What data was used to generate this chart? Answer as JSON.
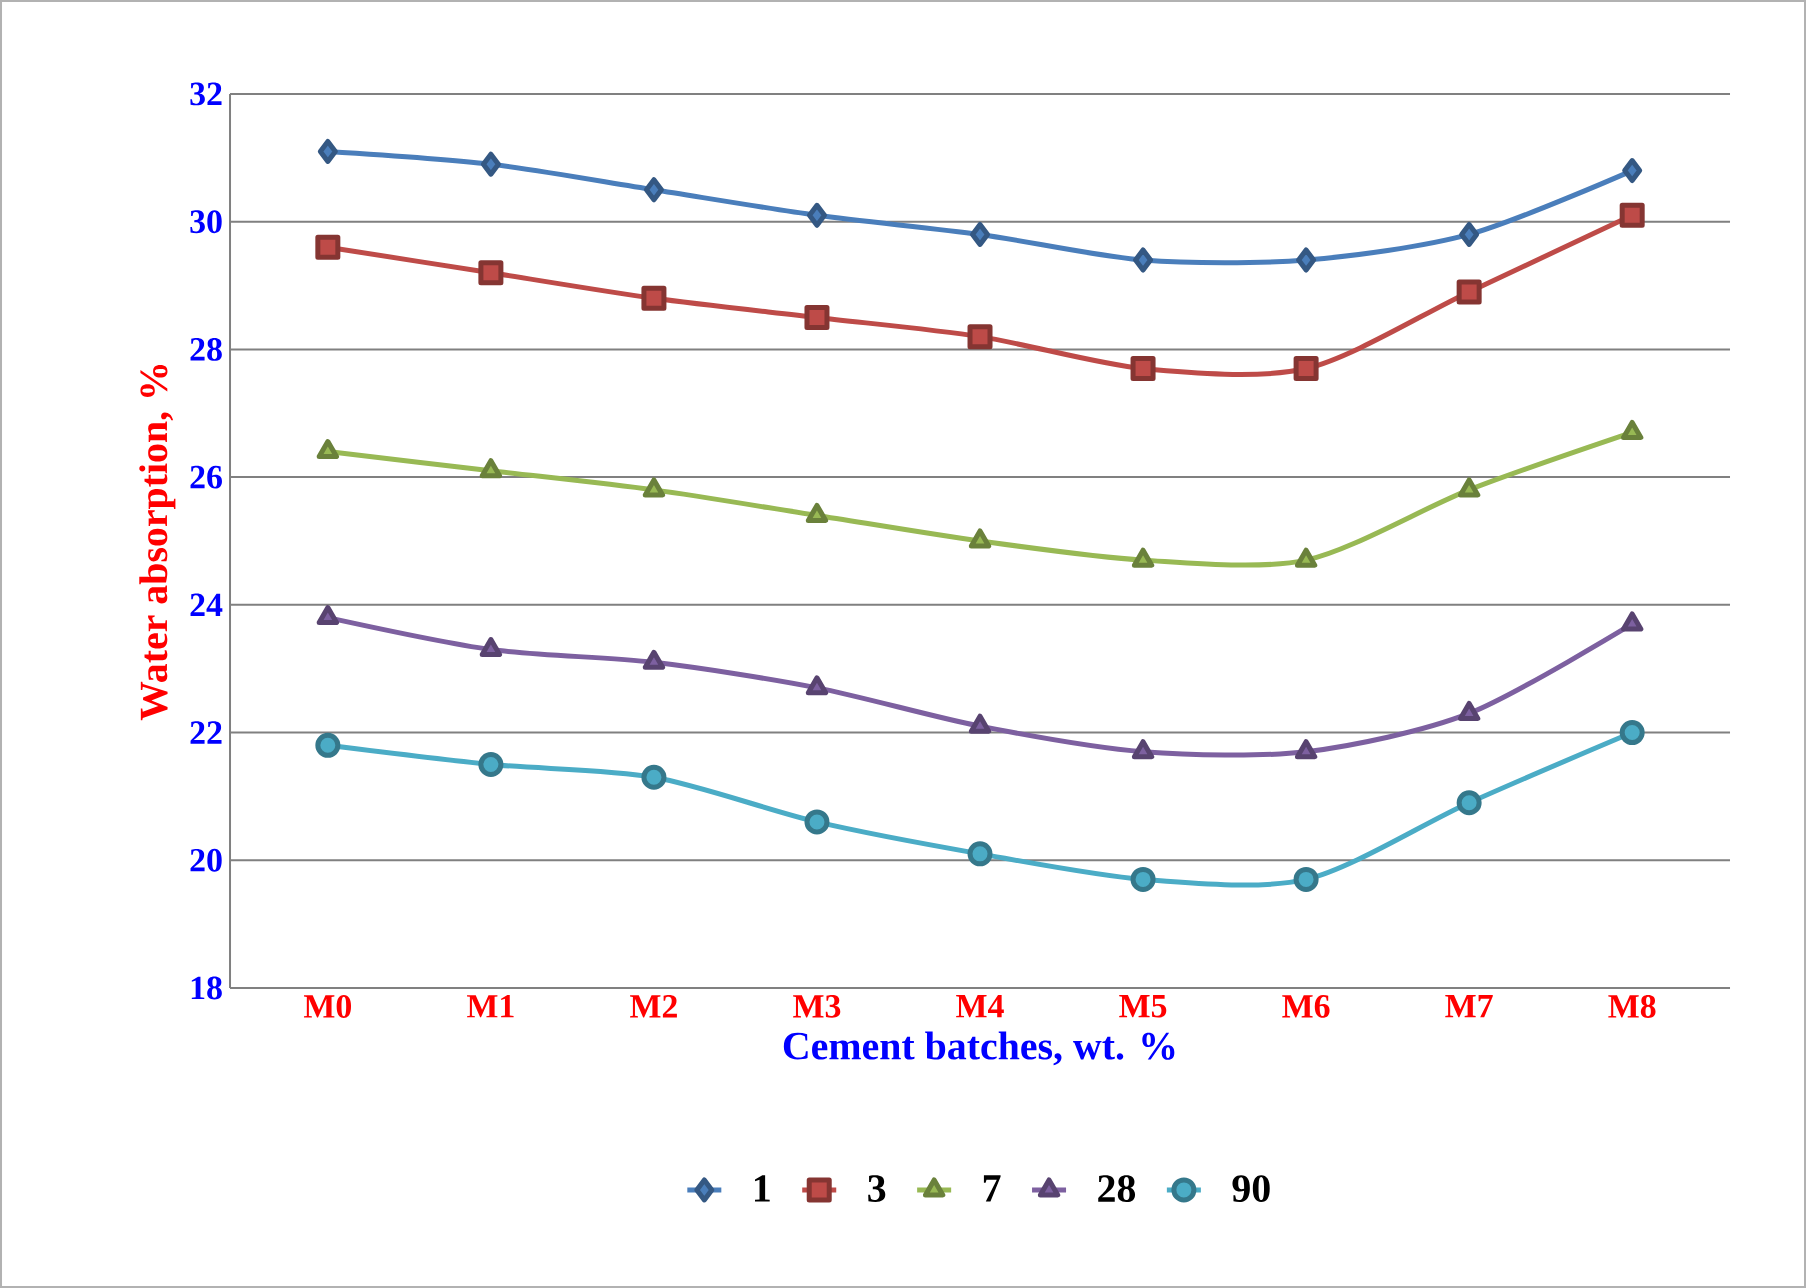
{
  "chart_data": {
    "type": "line",
    "xlabel": "Cement batches, wt. %",
    "ylabel": "Water absorption, %",
    "categories": [
      "M0",
      "M1",
      "M2",
      "M3",
      "M4",
      "M5",
      "M6",
      "M7",
      "M8"
    ],
    "ylim": [
      18,
      32
    ],
    "yticks": [
      18,
      20,
      22,
      24,
      26,
      28,
      30,
      32
    ],
    "grid": "y",
    "legend": "bottom",
    "line_style": "solid",
    "series": [
      {
        "name": "1",
        "color": "#4a7ebb",
        "marker": "diamond",
        "values": [
          31.1,
          30.9,
          30.5,
          30.1,
          29.8,
          29.4,
          29.4,
          29.8,
          30.8
        ]
      },
      {
        "name": "3",
        "color": "#be4b48",
        "marker": "square",
        "values": [
          29.6,
          29.2,
          28.8,
          28.5,
          28.2,
          27.7,
          27.7,
          28.9,
          30.1
        ]
      },
      {
        "name": "7",
        "color": "#98b954",
        "marker": "triangle",
        "values": [
          26.4,
          26.1,
          25.8,
          25.4,
          25.0,
          24.7,
          24.7,
          25.8,
          26.7
        ]
      },
      {
        "name": "28",
        "color": "#7d60a0",
        "marker": "triangle",
        "values": [
          23.8,
          23.3,
          23.1,
          22.7,
          22.1,
          21.7,
          21.7,
          22.3,
          23.7
        ]
      },
      {
        "name": "90",
        "color": "#4bacc6",
        "marker": "circle",
        "values": [
          21.8,
          21.5,
          21.3,
          20.6,
          20.1,
          19.7,
          19.7,
          20.9,
          22.0
        ]
      }
    ]
  }
}
